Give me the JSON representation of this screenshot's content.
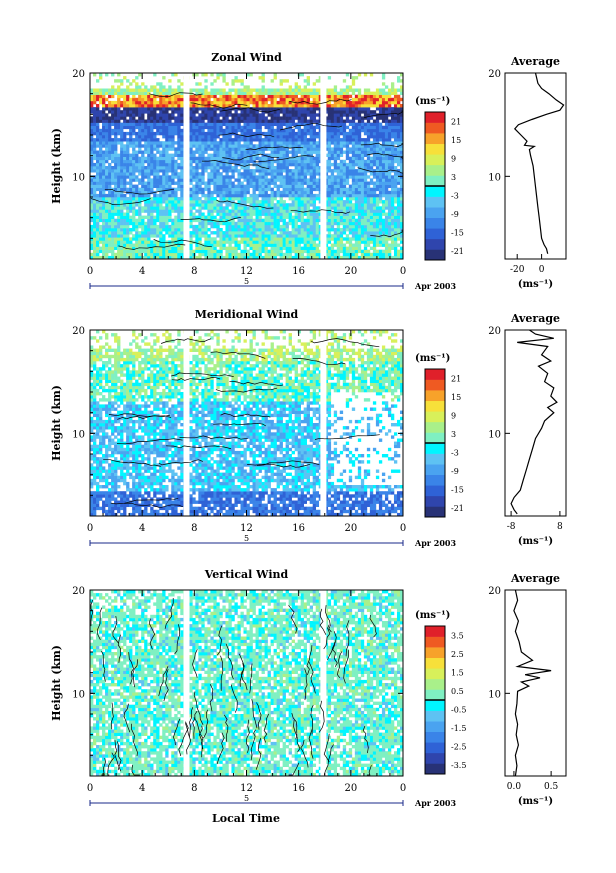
{
  "page": {
    "date_label": "Apr 2003",
    "xlabel_bottom": "Local Time"
  },
  "colorbar_palette": [
    "#283276",
    "#2f45ad",
    "#2f62d6",
    "#3a84e8",
    "#4aa3f0",
    "#5ec2f3",
    "#00f5ff",
    "#7ff0c2",
    "#a9f08a",
    "#d8f05a",
    "#f7e03a",
    "#f7a22a",
    "#ef5a22",
    "#e0202a"
  ],
  "chart_data": [
    {
      "type": "heatmap",
      "title": "Zonal Wind",
      "ylabel": "Height (km)",
      "ylim": [
        2,
        20
      ],
      "yticks": [
        "10",
        "20"
      ],
      "xlim": [
        0,
        24
      ],
      "xticks": [
        "0",
        "4",
        "8",
        "12",
        "16",
        "20",
        "0"
      ],
      "day_label": "5",
      "unit": "(ms⁻¹)",
      "colorbar_ticks": [
        "21",
        "15",
        "9",
        "3",
        "-3",
        "-9",
        "-15",
        "-21"
      ],
      "gaps_hours": [
        7.4,
        17.9
      ],
      "profile": {
        "title": "Average",
        "xticks": [
          "-20",
          "0"
        ],
        "xlim": [
          -30,
          20
        ],
        "xlabel": "(ms⁻¹)",
        "points": [
          [
            -5,
            20
          ],
          [
            -3,
            19
          ],
          [
            0,
            18.5
          ],
          [
            6,
            18
          ],
          [
            12,
            17.4
          ],
          [
            18,
            16.9
          ],
          [
            15,
            16.4
          ],
          [
            4,
            16
          ],
          [
            -8,
            15.5
          ],
          [
            -19,
            15
          ],
          [
            -22,
            14.6
          ],
          [
            -17,
            14
          ],
          [
            -12,
            13.4
          ],
          [
            -14,
            13
          ],
          [
            -6,
            12.9
          ],
          [
            -10,
            12.6
          ],
          [
            -9,
            12
          ],
          [
            -7,
            11
          ],
          [
            -6,
            10
          ],
          [
            -5,
            9
          ],
          [
            -4,
            8
          ],
          [
            -3,
            7
          ],
          [
            -2,
            6
          ],
          [
            -1,
            5
          ],
          [
            0,
            4
          ],
          [
            2,
            3.4
          ],
          [
            4,
            3
          ],
          [
            5,
            2.5
          ]
        ]
      }
    },
    {
      "type": "heatmap",
      "title": "Meridional Wind",
      "ylabel": "Height (km)",
      "ylim": [
        2,
        20
      ],
      "yticks": [
        "10",
        "20"
      ],
      "xlim": [
        0,
        24
      ],
      "xticks": [
        "0",
        "4",
        "8",
        "12",
        "16",
        "20",
        "0"
      ],
      "day_label": "5",
      "unit": "(ms⁻¹)",
      "colorbar_ticks": [
        "21",
        "15",
        "9",
        "3",
        "-3",
        "-9",
        "-15",
        "-21"
      ],
      "gaps_hours": [
        7.4,
        17.9
      ],
      "profile": {
        "title": "Average",
        "xticks": [
          "-8",
          "8"
        ],
        "xlim": [
          -10,
          10
        ],
        "xlabel": "(ms⁻¹)",
        "points": [
          [
            -2,
            20
          ],
          [
            0,
            19.6
          ],
          [
            6,
            19.2
          ],
          [
            -6,
            18.8
          ],
          [
            4,
            18.4
          ],
          [
            2,
            17.6
          ],
          [
            5,
            17
          ],
          [
            1,
            16.5
          ],
          [
            4,
            15.8
          ],
          [
            3,
            15
          ],
          [
            6,
            14.4
          ],
          [
            5,
            13.6
          ],
          [
            7,
            13
          ],
          [
            4,
            12.5
          ],
          [
            6,
            12
          ],
          [
            3,
            11.2
          ],
          [
            2,
            10.5
          ],
          [
            0,
            9.5
          ],
          [
            -1,
            8.5
          ],
          [
            -2,
            7.5
          ],
          [
            -3,
            6.5
          ],
          [
            -4,
            5.5
          ],
          [
            -5,
            4.5
          ],
          [
            -7,
            3.8
          ],
          [
            -8,
            3.2
          ],
          [
            -7,
            2.6
          ],
          [
            -6,
            2.2
          ]
        ]
      }
    },
    {
      "type": "heatmap",
      "title": "Vertical Wind",
      "ylabel": "Height (km)",
      "ylim": [
        2,
        20
      ],
      "yticks": [
        "10",
        "20"
      ],
      "xlim": [
        0,
        24
      ],
      "xticks": [
        "0",
        "4",
        "8",
        "12",
        "16",
        "20",
        "0"
      ],
      "day_label": "5",
      "unit": "(ms⁻¹)",
      "colorbar_ticks": [
        "3.5",
        "2.5",
        "1.5",
        "0.5",
        "-0.5",
        "-1.5",
        "-2.5",
        "-3.5"
      ],
      "gaps_hours": [
        7.4,
        17.9
      ],
      "profile": {
        "title": "Average",
        "xticks": [
          "0.0",
          "0.5"
        ],
        "xlim": [
          -0.12,
          0.7
        ],
        "xlabel": "(ms⁻¹)",
        "points": [
          [
            0.02,
            20
          ],
          [
            0.05,
            19
          ],
          [
            0.0,
            18
          ],
          [
            0.06,
            17
          ],
          [
            0.02,
            16
          ],
          [
            0.07,
            15
          ],
          [
            0.1,
            14
          ],
          [
            0.25,
            13.2
          ],
          [
            0.05,
            12.6
          ],
          [
            0.5,
            12.2
          ],
          [
            0.15,
            11.8
          ],
          [
            0.35,
            11.5
          ],
          [
            0.1,
            11.1
          ],
          [
            0.2,
            10.7
          ],
          [
            0.05,
            10.2
          ],
          [
            0.04,
            9
          ],
          [
            0.02,
            8
          ],
          [
            0.05,
            7
          ],
          [
            0.03,
            6
          ],
          [
            0.06,
            5
          ],
          [
            0.02,
            4
          ],
          [
            0.04,
            3
          ],
          [
            0.02,
            2
          ]
        ]
      }
    }
  ]
}
